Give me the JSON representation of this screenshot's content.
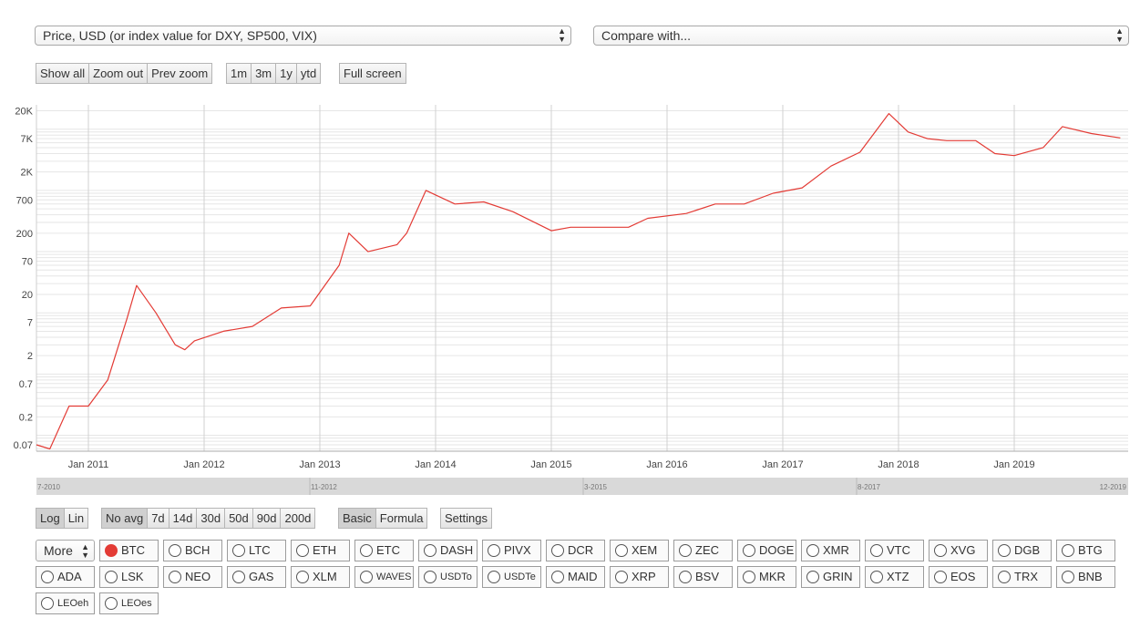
{
  "controls": {
    "metric_select": "Price, USD (or index value for DXY, SP500, VIX)",
    "compare_select": "Compare with...",
    "zoom_buttons": [
      "Show all",
      "Zoom out",
      "Prev zoom"
    ],
    "range_buttons": [
      "1m",
      "3m",
      "1y",
      "ytd"
    ],
    "fullscreen_button": "Full screen",
    "scale_buttons": [
      "Log",
      "Lin"
    ],
    "scale_active": "Log",
    "avg_buttons": [
      "No avg",
      "7d",
      "14d",
      "30d",
      "50d",
      "90d",
      "200d"
    ],
    "avg_active": "No avg",
    "mode_buttons": [
      "Basic",
      "Formula"
    ],
    "mode_active": "Basic",
    "settings_button": "Settings",
    "more_select": "More"
  },
  "navigator": {
    "labels": [
      "7-2010",
      "11-2012",
      "3-2015",
      "8-2017",
      "12-2019"
    ]
  },
  "coins": [
    {
      "label": "BTC",
      "selected": true
    },
    {
      "label": "BCH"
    },
    {
      "label": "LTC"
    },
    {
      "label": "ETH"
    },
    {
      "label": "ETC"
    },
    {
      "label": "DASH"
    },
    {
      "label": "PIVX"
    },
    {
      "label": "DCR"
    },
    {
      "label": "XEM"
    },
    {
      "label": "ZEC"
    },
    {
      "label": "DOGE"
    },
    {
      "label": "XMR"
    },
    {
      "label": "VTC"
    },
    {
      "label": "XVG"
    },
    {
      "label": "DGB"
    },
    {
      "label": "BTG"
    },
    {
      "label": "ADA"
    },
    {
      "label": "LSK"
    },
    {
      "label": "NEO"
    },
    {
      "label": "GAS"
    },
    {
      "label": "XLM"
    },
    {
      "label": "WAVES"
    },
    {
      "label": "USDTo"
    },
    {
      "label": "USDTe"
    },
    {
      "label": "MAID"
    },
    {
      "label": "XRP"
    },
    {
      "label": "BSV"
    },
    {
      "label": "MKR"
    },
    {
      "label": "GRIN"
    },
    {
      "label": "XTZ"
    },
    {
      "label": "EOS"
    },
    {
      "label": "TRX"
    },
    {
      "label": "BNB"
    },
    {
      "label": "LEOeh"
    },
    {
      "label": "LEOes"
    }
  ],
  "chart_data": {
    "type": "line",
    "scale": "log",
    "series": [
      {
        "color": "#e33b35",
        "x": [
          "2010-07",
          "2010-09",
          "2010-11",
          "2011-01",
          "2011-03",
          "2011-05",
          "2011-06",
          "2011-08",
          "2011-10",
          "2011-11",
          "2011-12",
          "2012-03",
          "2012-06",
          "2012-09",
          "2012-12",
          "2013-03",
          "2013-04",
          "2013-06",
          "2013-09",
          "2013-10",
          "2013-12",
          "2014-03",
          "2014-06",
          "2014-09",
          "2015-01",
          "2015-03",
          "2015-06",
          "2015-09",
          "2015-11",
          "2016-03",
          "2016-06",
          "2016-09",
          "2016-12",
          "2017-03",
          "2017-06",
          "2017-09",
          "2017-12",
          "2018-02",
          "2018-04",
          "2018-06",
          "2018-09",
          "2018-11",
          "2019-01",
          "2019-04",
          "2019-06",
          "2019-09",
          "2019-12"
        ],
        "y": [
          0.07,
          0.06,
          0.3,
          0.3,
          0.8,
          8,
          28,
          10,
          3,
          2.5,
          3.5,
          5,
          6,
          12,
          13,
          60,
          200,
          100,
          130,
          200,
          1000,
          600,
          650,
          450,
          220,
          250,
          250,
          250,
          350,
          420,
          600,
          600,
          900,
          1100,
          2500,
          4200,
          18000,
          9000,
          7000,
          6500,
          6500,
          4000,
          3700,
          5000,
          11000,
          8500,
          7200
        ]
      }
    ],
    "x_ticks": [
      "Jan 2011",
      "Jan 2012",
      "Jan 2013",
      "Jan 2014",
      "Jan 2015",
      "Jan 2016",
      "Jan 2017",
      "Jan 2018",
      "Jan 2019"
    ],
    "y_ticks": [
      "20K",
      "7K",
      "2K",
      "700",
      "200",
      "70",
      "20",
      "7",
      "2",
      "0.7",
      "0.2",
      "0.07"
    ],
    "grid": true
  }
}
